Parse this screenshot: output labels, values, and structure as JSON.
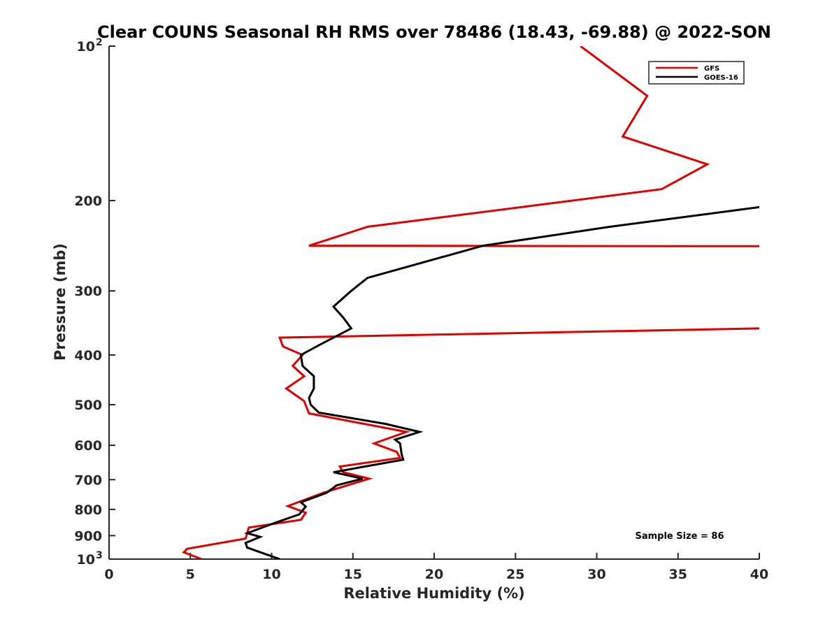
{
  "chart_data": {
    "type": "line",
    "title": "Clear COUNS Seasonal RH RMS over 78486 (18.43, -69.88) @ 2022-SON",
    "xlabel": "Relative Humidity (%)",
    "ylabel": "Pressure (mb)",
    "xlim": [
      0,
      40
    ],
    "ylim": [
      100,
      1000
    ],
    "y_scale": "log",
    "y_reversed": true,
    "x_ticks": [
      0,
      5,
      10,
      15,
      20,
      25,
      30,
      35,
      40
    ],
    "x_tick_labels": [
      "0",
      "5",
      "10",
      "15",
      "20",
      "25",
      "30",
      "35",
      "40"
    ],
    "y_ticks": [
      100,
      200,
      300,
      400,
      500,
      600,
      700,
      800,
      900,
      1000
    ],
    "y_tick_labels": [
      "",
      "200",
      "300",
      "400",
      "500",
      "600",
      "700",
      "800",
      "900",
      ""
    ],
    "y_tick_power_labels": [
      {
        "value": 100,
        "base": "10",
        "exp": "2"
      },
      {
        "value": 1000,
        "base": "10",
        "exp": "3"
      }
    ],
    "grid": false,
    "legend_position": "top-right",
    "series": [
      {
        "name": "GFS",
        "color": "#e00000",
        "points": [
          [
            29,
            100
          ],
          [
            33.1,
            125
          ],
          [
            31.6,
            150
          ],
          [
            36.8,
            170
          ],
          [
            34,
            190
          ],
          [
            15.9,
            225
          ],
          [
            12.3,
            245
          ],
          [
            40,
            245.5
          ]
        ],
        "segments": [
          [
            [
              29,
              100
            ],
            [
              33.1,
              125
            ],
            [
              31.6,
              150
            ],
            [
              36.8,
              170
            ],
            [
              34,
              190
            ],
            [
              15.9,
              225
            ],
            [
              12.3,
              245
            ],
            [
              40,
              245.5
            ]
          ],
          [
            [
              40,
              355
            ],
            [
              10.5,
              370
            ],
            [
              10.7,
              385
            ],
            [
              11.9,
              400
            ],
            [
              11.3,
              420
            ],
            [
              12.0,
              440
            ],
            [
              10.9,
              465
            ],
            [
              12.0,
              492
            ],
            [
              12.3,
              520
            ],
            [
              18.3,
              565
            ],
            [
              16.3,
              595
            ],
            [
              17.7,
              618
            ],
            [
              17.9,
              635
            ],
            [
              14.2,
              660
            ],
            [
              14.4,
              677
            ],
            [
              16.0,
              697
            ],
            [
              13.2,
              742
            ],
            [
              11.0,
              788
            ],
            [
              12.1,
              812
            ],
            [
              11.8,
              838
            ],
            [
              8.6,
              868
            ],
            [
              8.4,
              912
            ],
            [
              4.8,
              955
            ],
            [
              4.6,
              970
            ],
            [
              5.7,
              1000
            ]
          ]
        ]
      },
      {
        "name": "GOES-16",
        "color": "#000000",
        "segments": [
          [
            [
              40,
              206
            ],
            [
              30.8,
              225
            ],
            [
              23,
              245
            ],
            [
              15.9,
              283
            ],
            [
              14.9,
              300
            ],
            [
              13.8,
              322
            ],
            [
              14.4,
              338
            ],
            [
              14.9,
              355
            ],
            [
              12.9,
              383
            ],
            [
              11.8,
              400
            ],
            [
              11.9,
              420
            ],
            [
              12.6,
              440
            ],
            [
              12.6,
              465
            ],
            [
              12.3,
              485
            ],
            [
              12.4,
              500
            ],
            [
              12.9,
              518
            ],
            [
              17,
              545
            ],
            [
              19.1,
              565
            ],
            [
              17.6,
              585
            ],
            [
              17.9,
              595
            ],
            [
              18.0,
              625
            ],
            [
              18.1,
              640
            ],
            [
              15.5,
              662
            ],
            [
              13.8,
              677
            ],
            [
              15.6,
              697
            ],
            [
              14.0,
              718
            ],
            [
              13.4,
              742
            ],
            [
              11.8,
              775
            ],
            [
              12.1,
              790
            ],
            [
              11.7,
              818
            ],
            [
              10.2,
              850
            ],
            [
              8.5,
              890
            ],
            [
              9.3,
              905
            ],
            [
              8.4,
              930
            ],
            [
              8.5,
              950
            ],
            [
              10.5,
              1000
            ]
          ]
        ]
      }
    ],
    "annotation": "Sample Size = 86"
  }
}
